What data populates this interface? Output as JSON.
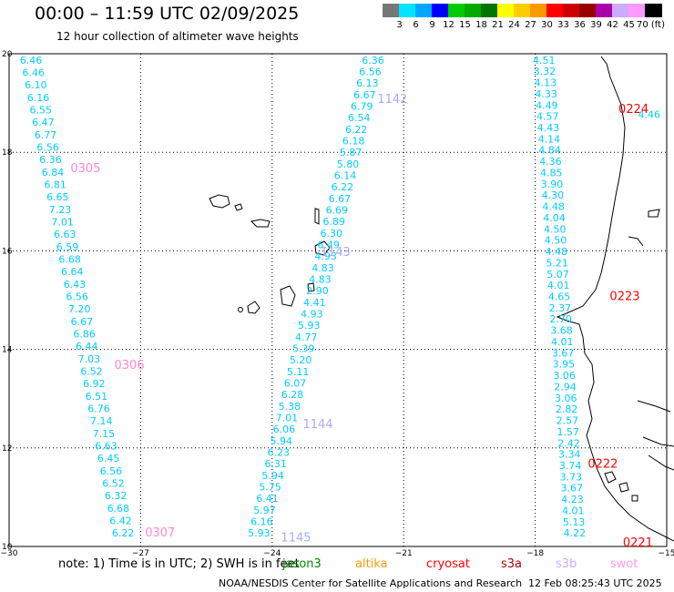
{
  "title": "00:00 – 11:59 UTC 02/09/2025",
  "subtitle": "12 hour collection of altimeter wave heights",
  "legend": {
    "labels": [
      "3",
      "6",
      "9",
      "12",
      "15",
      "18",
      "21",
      "24",
      "27",
      "30",
      "33",
      "36",
      "39",
      "42",
      "45",
      "70 (ft)"
    ],
    "colors": [
      "#777777",
      "#00e5ff",
      "#00a8ff",
      "#0000ff",
      "#00cc00",
      "#00aa00",
      "#007700",
      "#ffff00",
      "#ffcc00",
      "#ff9900",
      "#ff0000",
      "#cc0000",
      "#990000",
      "#aa00aa",
      "#ccaaff",
      "#ff99ff",
      "#000000"
    ]
  },
  "axes": {
    "x_ticks": [
      "−30",
      "−27",
      "−24",
      "−21",
      "−18",
      "−15"
    ],
    "y_ticks": [
      "20",
      "18",
      "16",
      "14",
      "12",
      "10"
    ]
  },
  "note": {
    "prefix": "note: 1) Time is in UTC; 2) SWH is in feet",
    "satellites": [
      {
        "name": "jason3",
        "color": "#008800"
      },
      {
        "name": "altika",
        "color": "#ff9900"
      },
      {
        "name": "cryosat",
        "color": "#ff0000"
      },
      {
        "name": "s3a",
        "color": "#aa0000"
      },
      {
        "name": "s3b",
        "color": "#ccaaff"
      },
      {
        "name": "swot",
        "color": "#ff99ff"
      }
    ]
  },
  "footer": {
    "left": "NOAA/NESDIS Center for Satellite Applications and Research",
    "right": "12 Feb 08:25:43 UTC 2025"
  },
  "tracks": [
    {
      "color": "#00ccff",
      "lon_start": -29.5,
      "lon_end": -27.4,
      "lat_start": 19.8,
      "lat_end": 10.2,
      "values": [
        "6.46",
        "6.46",
        "6.10",
        "6.16",
        "6.55",
        "6.47",
        "6.77",
        "6.56",
        "6.36",
        "6.84",
        "6.81",
        "6.65",
        "7.23",
        "7.01",
        "6.63",
        "6.59",
        "6.68",
        "6.64",
        "6.43",
        "6.56",
        "7.20",
        "6.67",
        "6.86",
        "6.44",
        "7.03",
        "6.52",
        "6.92",
        "6.51",
        "6.76",
        "7.14",
        "7.15",
        "6.63",
        "6.45",
        "6.56",
        "6.52",
        "6.32",
        "6.68",
        "6.42",
        "6.22"
      ]
    },
    {
      "color": "#00ccff",
      "lon_start": -21.7,
      "lon_end": -24.3,
      "lat_start": 19.8,
      "lat_end": 10.2,
      "values": [
        "6.36",
        "6.56",
        "6.13",
        "6.67",
        "6.79",
        "6.54",
        "6.22",
        "6.18",
        "5.87",
        "5.80",
        "6.14",
        "6.22",
        "6.67",
        "6.69",
        "6.89",
        "6.30",
        "6.49",
        "4.93",
        "4.83",
        "4.83",
        "2.90",
        "4.41",
        "4.93",
        "5.93",
        "4.77",
        "5.39",
        "5.20",
        "5.11",
        "6.07",
        "6.28",
        "5.38",
        "7.01",
        "6.06",
        "5.94",
        "6.23",
        "6.31",
        "5.94",
        "5.75",
        "6.41",
        "5.97",
        "6.16",
        "5.93"
      ]
    },
    {
      "color": "#00ccff",
      "lon_start": -17.8,
      "lon_end": -17.1,
      "lat_start": 19.8,
      "lat_end": 10.2,
      "values": [
        "4.51",
        "3.32",
        "4.13",
        "4.33",
        "4.49",
        "4.57",
        "4.43",
        "4.14",
        "4.84",
        "4.36",
        "4.85",
        "3.90",
        "4.30",
        "4.48",
        "4.04",
        "4.50",
        "4.50",
        "4.48",
        "5.21",
        "5.07",
        "4.01",
        "4.65",
        "2.37",
        "2.70",
        "3.68",
        "4.01",
        "3.67",
        "3.95",
        "3.06",
        "2.94",
        "3.06",
        "2.82",
        "2.57",
        "1.57",
        "2.42",
        "3.34",
        "3.74",
        "3.73",
        "3.67",
        "4.23",
        "4.01",
        "5.13",
        "4.22"
      ]
    }
  ],
  "extra_points": [
    {
      "value": "4.46",
      "color": "#00ccff",
      "lon": -15.4,
      "lat": 18.7
    }
  ],
  "orbit_labels": [
    {
      "text": "1142",
      "color": "#aaaaff",
      "lon": -21.6,
      "lat": 19.0
    },
    {
      "text": "1143",
      "color": "#aaaaff",
      "lon": -22.9,
      "lat": 15.9
    },
    {
      "text": "1144",
      "color": "#aaaaff",
      "lon": -23.3,
      "lat": 12.4
    },
    {
      "text": "1145",
      "color": "#aaaaff",
      "lon": -23.8,
      "lat": 10.1
    },
    {
      "text": "0305",
      "color": "#ff88cc",
      "lon": -28.6,
      "lat": 17.6
    },
    {
      "text": "0306",
      "color": "#ff88cc",
      "lon": -27.6,
      "lat": 13.6
    },
    {
      "text": "0307",
      "color": "#ff88cc",
      "lon": -26.9,
      "lat": 10.2
    },
    {
      "text": "0224",
      "color": "#ff0000",
      "lon": -16.1,
      "lat": 18.8
    },
    {
      "text": "0223",
      "color": "#ff0000",
      "lon": -16.3,
      "lat": 15.0
    },
    {
      "text": "0222",
      "color": "#ff0000",
      "lon": -16.8,
      "lat": 11.6
    },
    {
      "text": "0221",
      "color": "#ff0000",
      "lon": -16.0,
      "lat": 10.0
    }
  ]
}
